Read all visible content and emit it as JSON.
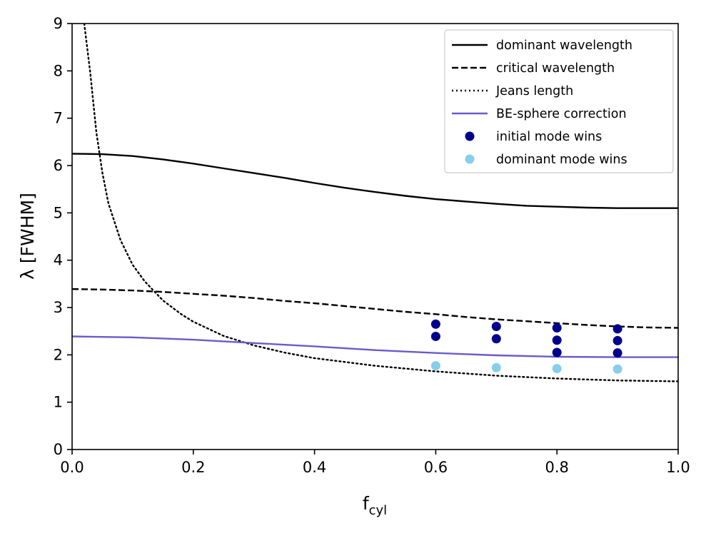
{
  "chart_data": {
    "type": "line",
    "title": "",
    "xlabel": "f",
    "xlabel_sub": "cyl",
    "ylabel": "λ [FWHM]",
    "xlim": [
      0.0,
      1.0
    ],
    "ylim": [
      0,
      9
    ],
    "xticks": [
      "0.0",
      "0.2",
      "0.4",
      "0.6",
      "0.8",
      "1.0"
    ],
    "yticks": [
      "0",
      "1",
      "2",
      "3",
      "4",
      "5",
      "6",
      "7",
      "8",
      "9"
    ],
    "grid": false,
    "legend_position": "top-right",
    "series": [
      {
        "name": "dominant wavelength",
        "kind": "line",
        "style": "solid",
        "color": "#000000",
        "x": [
          0.0,
          0.05,
          0.1,
          0.15,
          0.2,
          0.25,
          0.3,
          0.35,
          0.4,
          0.45,
          0.5,
          0.55,
          0.6,
          0.65,
          0.7,
          0.75,
          0.8,
          0.85,
          0.9,
          0.95,
          1.0
        ],
        "y": [
          6.25,
          6.24,
          6.2,
          6.13,
          6.04,
          5.94,
          5.84,
          5.74,
          5.63,
          5.53,
          5.44,
          5.36,
          5.29,
          5.24,
          5.19,
          5.15,
          5.13,
          5.11,
          5.1,
          5.1,
          5.1
        ]
      },
      {
        "name": "critical wavelength",
        "kind": "line",
        "style": "dashed",
        "color": "#000000",
        "x": [
          0.0,
          0.05,
          0.1,
          0.15,
          0.2,
          0.25,
          0.3,
          0.35,
          0.4,
          0.45,
          0.5,
          0.55,
          0.6,
          0.65,
          0.7,
          0.75,
          0.8,
          0.85,
          0.9,
          0.95,
          1.0
        ],
        "y": [
          3.39,
          3.38,
          3.36,
          3.33,
          3.29,
          3.25,
          3.2,
          3.14,
          3.09,
          3.03,
          2.97,
          2.91,
          2.86,
          2.8,
          2.75,
          2.71,
          2.67,
          2.63,
          2.6,
          2.58,
          2.57
        ]
      },
      {
        "name": "Jeans length",
        "kind": "line",
        "style": "dotted",
        "color": "#000000",
        "x": [
          0.02,
          0.03,
          0.04,
          0.05,
          0.06,
          0.08,
          0.1,
          0.12,
          0.15,
          0.18,
          0.2,
          0.25,
          0.3,
          0.35,
          0.4,
          0.5,
          0.6,
          0.7,
          0.8,
          0.9,
          1.0
        ],
        "y": [
          9.0,
          7.95,
          6.7,
          5.85,
          5.2,
          4.42,
          3.9,
          3.55,
          3.15,
          2.86,
          2.7,
          2.4,
          2.2,
          2.05,
          1.93,
          1.77,
          1.65,
          1.56,
          1.5,
          1.46,
          1.44
        ]
      },
      {
        "name": "BE-sphere correction",
        "kind": "line",
        "style": "solid",
        "color": "#6a5acd",
        "x": [
          0.0,
          0.1,
          0.2,
          0.3,
          0.4,
          0.5,
          0.6,
          0.7,
          0.8,
          0.9,
          1.0
        ],
        "y": [
          2.39,
          2.37,
          2.32,
          2.25,
          2.18,
          2.1,
          2.04,
          1.99,
          1.96,
          1.95,
          1.95
        ]
      },
      {
        "name": "initial mode wins",
        "kind": "scatter",
        "color": "#00008b",
        "x": [
          0.6,
          0.6,
          0.7,
          0.7,
          0.8,
          0.8,
          0.8,
          0.9,
          0.9,
          0.9
        ],
        "y": [
          2.65,
          2.39,
          2.6,
          2.34,
          2.57,
          2.31,
          2.05,
          2.55,
          2.3,
          2.04
        ]
      },
      {
        "name": "dominant mode wins",
        "kind": "scatter",
        "color": "#87ceeb",
        "x": [
          0.6,
          0.7,
          0.8,
          0.9
        ],
        "y": [
          1.77,
          1.73,
          1.71,
          1.7
        ]
      }
    ]
  }
}
